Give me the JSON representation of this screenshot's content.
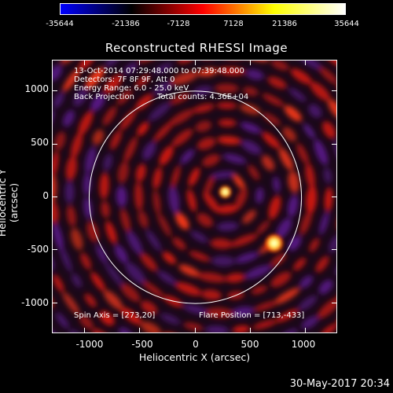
{
  "colorbar": {
    "ticks": [
      "-35644",
      "-21386",
      "-7128",
      "7128",
      "21386",
      "35644"
    ],
    "colors": [
      "#0000ff",
      "#000000",
      "#ff0000",
      "#ffff00",
      "#ffffff"
    ]
  },
  "title": "Reconstructed RHESSI Image",
  "info": {
    "line1": "13-Oct-2014 07:29:48.000 to 07:39:48.000",
    "line2": "Detectors: 7F 8F 9F, Att 0",
    "line3": "Energy Range: 6.0 - 25.0 keV",
    "line4a": "Back Projection",
    "line4b": "Total counts: 4.36E+04",
    "spin_axis": "Spin Axis = [273,20]",
    "flare_position": "Flare Position = [713,-433]"
  },
  "axes": {
    "xlabel": "Heliocentric X (arcsec)",
    "ylabel": "Heliocentric Y (arcsec)",
    "xticks": [
      "-1000",
      "-500",
      "0",
      "500",
      "1000"
    ],
    "yticks": [
      "1000",
      "500",
      "0",
      "-500",
      "-1000"
    ]
  },
  "datestamp": "30-May-2017 20:34",
  "image": {
    "xlim": [
      -1290,
      1290
    ],
    "ylim": [
      -1290,
      1290
    ],
    "solar_limb_radius_arcsec": 960,
    "bright_sources": [
      {
        "x": 270,
        "y": 50
      },
      {
        "x": 713,
        "y": -433
      }
    ]
  }
}
